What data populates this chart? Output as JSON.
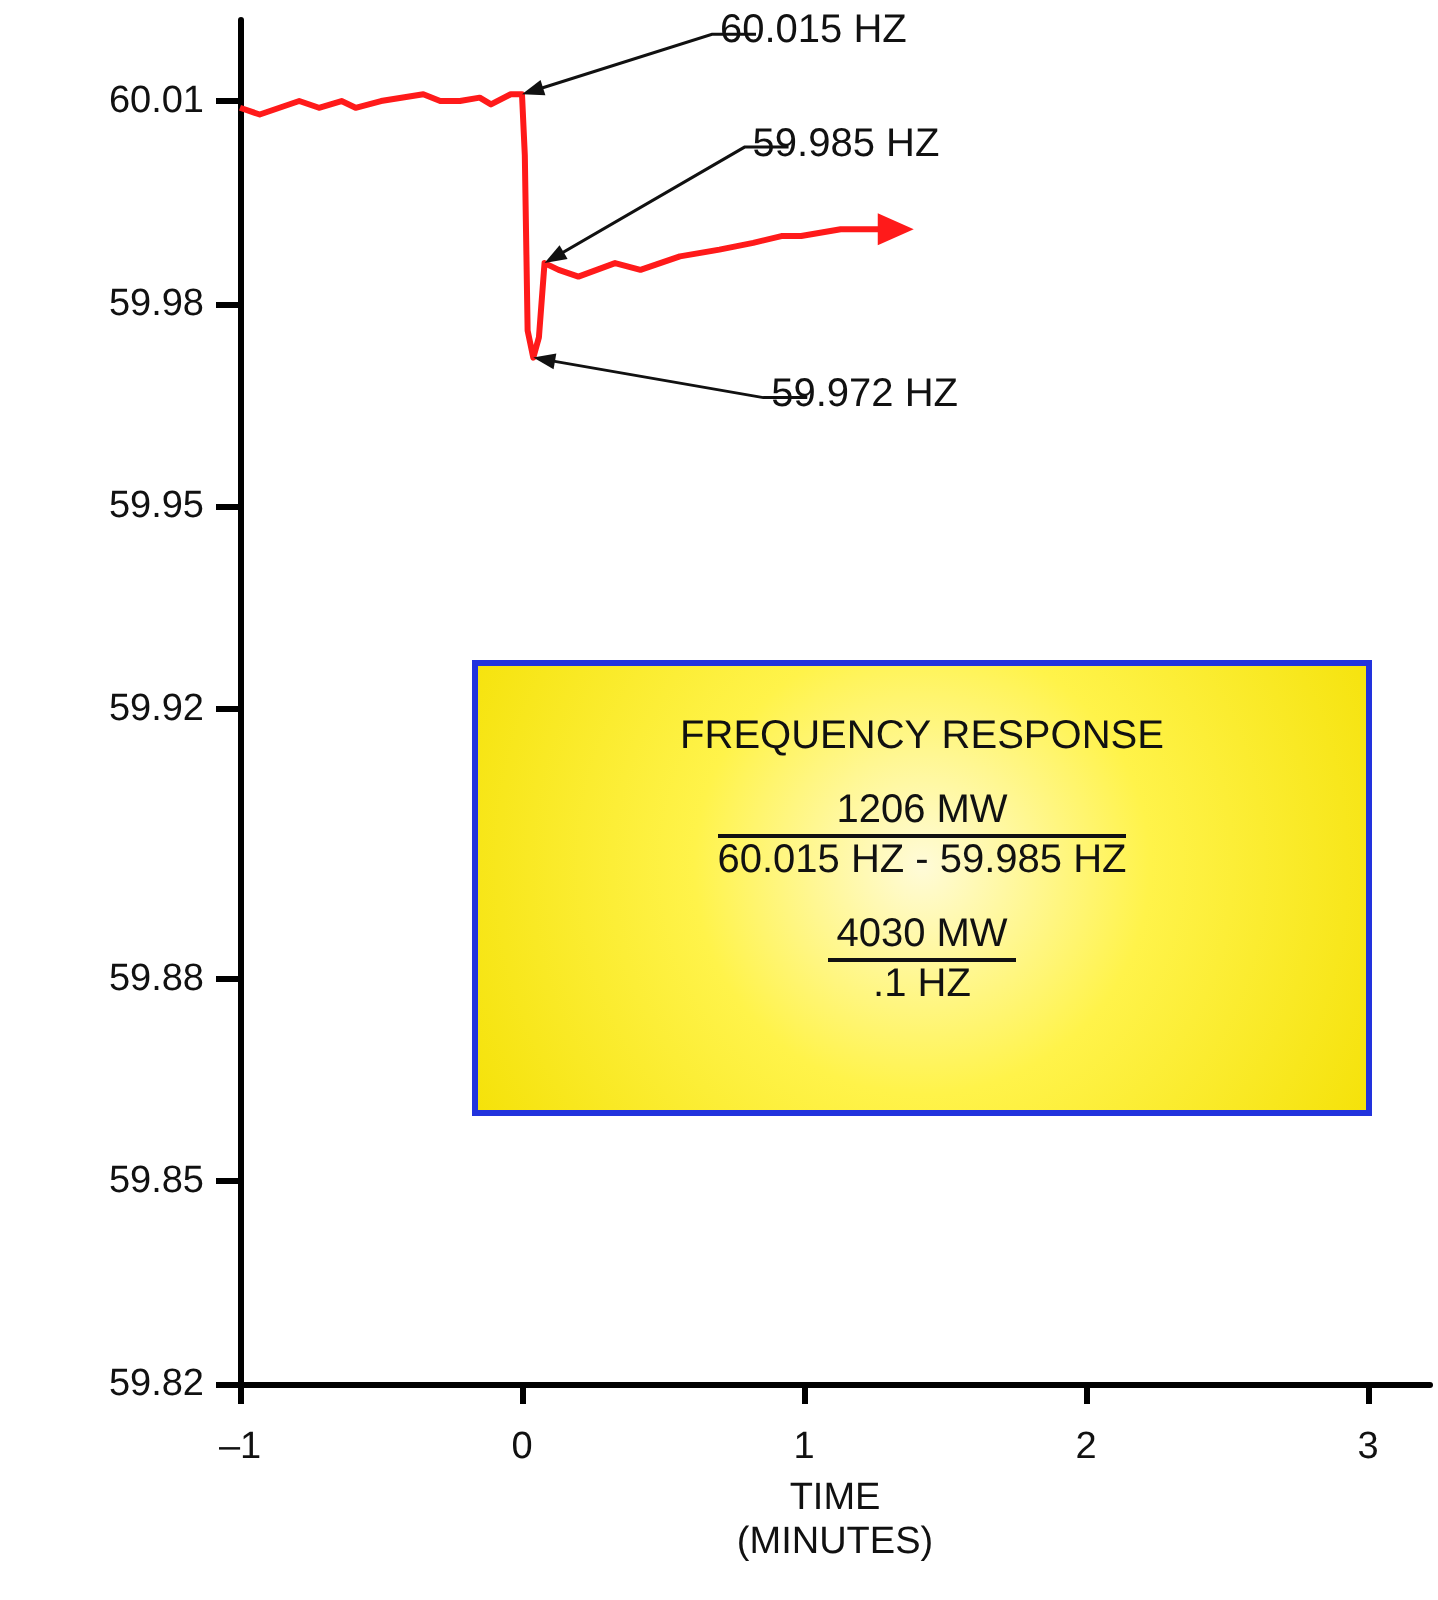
{
  "chart_data": {
    "type": "line",
    "xlabel": "TIME\n(MINUTES)",
    "x": [
      -1,
      -0.93,
      -0.79,
      -0.72,
      -0.64,
      -0.59,
      -0.5,
      -0.35,
      -0.29,
      -0.22,
      -0.15,
      -0.11,
      -0.04,
      0.0,
      0.01,
      0.02,
      0.04,
      0.06,
      0.08,
      0.13,
      0.2,
      0.33,
      0.42,
      0.56,
      0.7,
      0.82,
      0.92,
      0.99,
      1.13,
      1.29
    ],
    "series": [
      {
        "color": "#ff1a1a",
        "values": [
          60.009,
          60.008,
          60.01,
          60.009,
          60.01,
          60.009,
          60.01,
          60.011,
          60.01,
          60.01,
          60.0105,
          60.0095,
          60.011,
          60.011,
          60.002,
          59.976,
          59.972,
          59.975,
          59.986,
          59.985,
          59.984,
          59.986,
          59.985,
          59.987,
          59.988,
          59.989,
          59.99,
          59.99,
          59.991,
          59.991
        ]
      }
    ],
    "xlim": [
      -1,
      3.22
    ],
    "xticks": [
      {
        "value": -1,
        "label": "–1"
      },
      0,
      1,
      2,
      3
    ],
    "ylim": [
      59.82,
      60.022
    ],
    "yticks": [
      {
        "value": 60.01,
        "label": "60.01"
      },
      {
        "value": 59.98,
        "label": "59.98"
      },
      {
        "value": 59.95,
        "label": "59.95"
      },
      {
        "value": 59.92,
        "label": "59.92"
      },
      {
        "value": 59.88,
        "label": "59.88"
      },
      {
        "value": 59.85,
        "label": "59.85"
      },
      {
        "value": 59.82,
        "label": "59.82"
      }
    ],
    "grid": false,
    "annotations": [
      {
        "text": "60.015 HZ",
        "x": 0,
        "y": 60.011
      },
      {
        "text": "59.985 HZ",
        "x": 0.08,
        "y": 59.986
      },
      {
        "text": "59.972 HZ",
        "x": 0.04,
        "y": 59.972
      },
      "FREQUENCY RESPONSE",
      "1206 MW",
      "60.015 HZ - 59.985 HZ",
      "4030 MW",
      ".1 HZ"
    ]
  }
}
